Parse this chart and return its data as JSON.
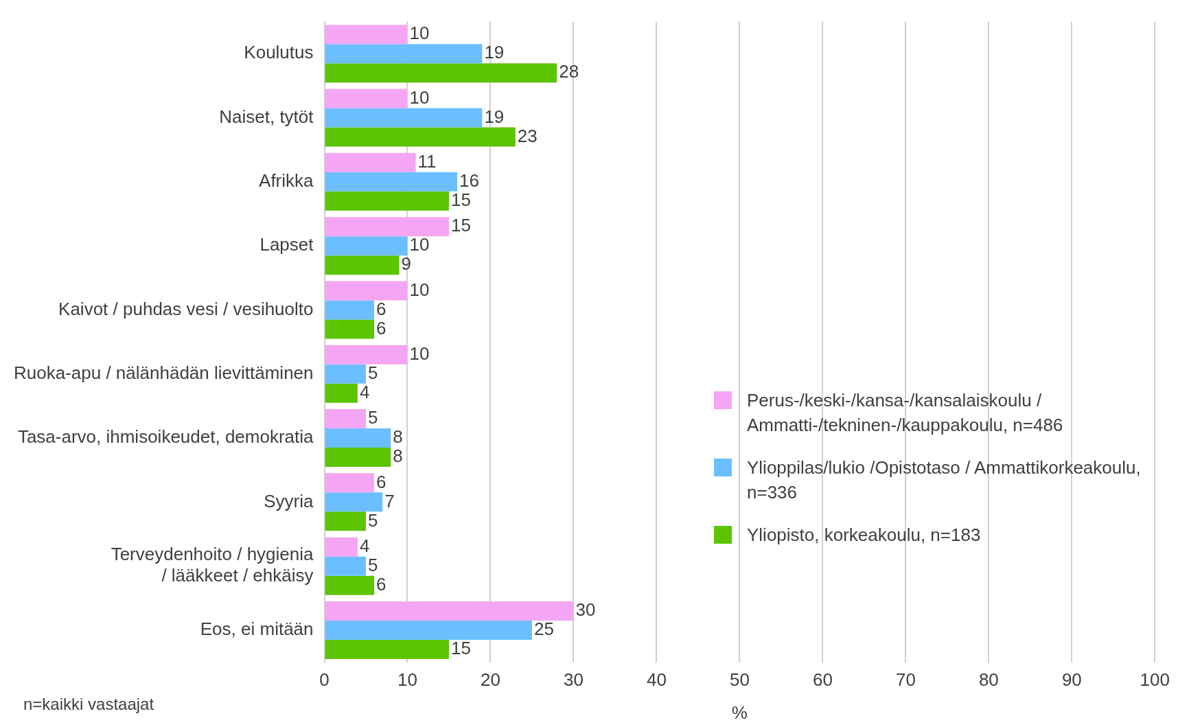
{
  "chart_data": {
    "type": "bar",
    "orientation": "horizontal",
    "xlabel": "%",
    "categories": [
      "Koulutus",
      "Naiset, tytöt",
      "Afrikka",
      "Lapset",
      "Kaivot / puhdas vesi / vesihuolto",
      "Ruoka-apu / nälänhädän lievittäminen",
      "Tasa-arvo, ihmisoikeudet, demokratia",
      "Syyria",
      "Terveydenhoito / hygienia / lääkkeet / ehkäisy",
      "Eos, ei mitään"
    ],
    "series": [
      {
        "name": "Perus-/keski-/kansa-/kansalaiskoulu / Ammatti-/tekninen-/kauppakoulu, n=486",
        "color": "#f4a6f4",
        "values": [
          10,
          10,
          11,
          15,
          10,
          10,
          5,
          6,
          4,
          30
        ]
      },
      {
        "name": "Ylioppilas/lukio /Opistotaso / Ammattikorkeakoulu, n=336",
        "color": "#6bbfff",
        "values": [
          19,
          19,
          16,
          10,
          6,
          5,
          8,
          7,
          5,
          25
        ]
      },
      {
        "name": "Yliopisto, korkeakoulu, n=183",
        "color": "#5cc400",
        "values": [
          28,
          23,
          15,
          9,
          6,
          4,
          8,
          5,
          6,
          15
        ]
      }
    ],
    "xlim": [
      0,
      100
    ],
    "xticks": [
      0,
      10,
      20,
      30,
      40,
      50,
      60,
      70,
      80,
      90,
      100
    ],
    "grid": "x",
    "legend": "right",
    "data_labels": true,
    "annotations": [
      "n=kaikki vastaajat"
    ]
  }
}
